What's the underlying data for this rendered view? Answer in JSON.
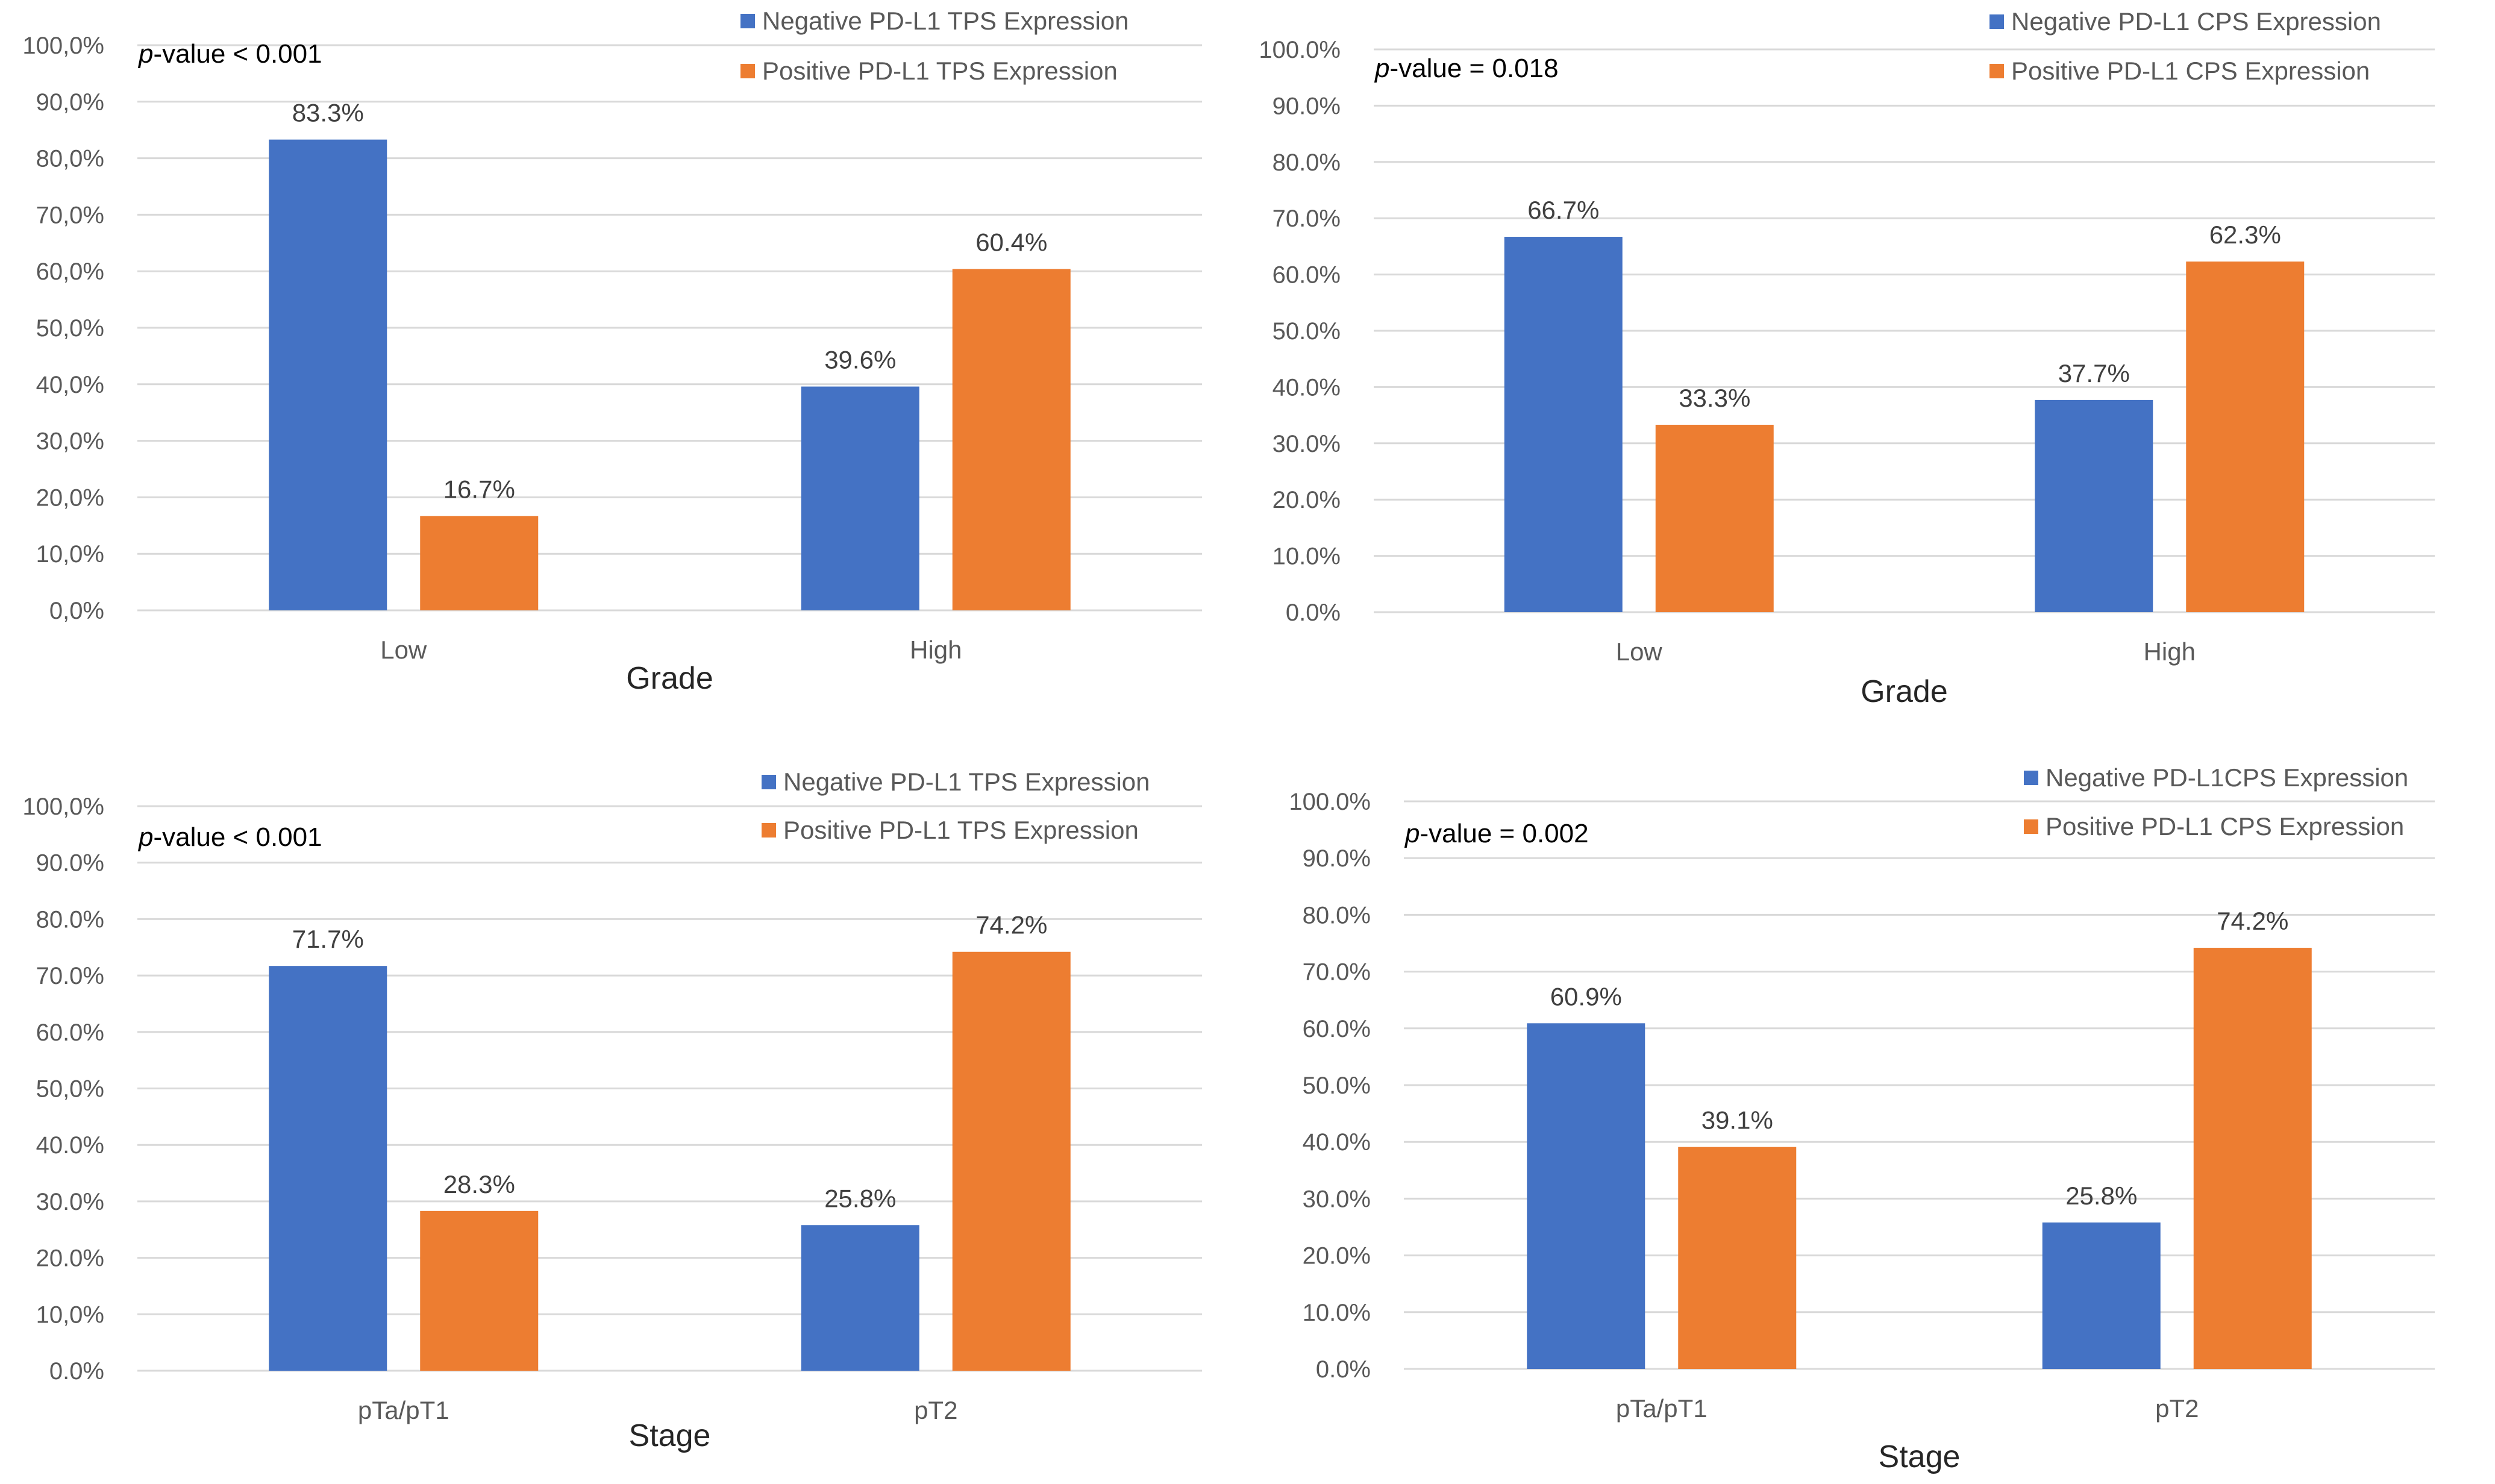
{
  "chart_data": [
    {
      "type": "bar",
      "name": "grade-tps",
      "title": "",
      "xlabel": "Grade",
      "ylabel": "",
      "ylim": [
        0,
        100
      ],
      "ytick_labels": [
        "0,0%",
        "10,0%",
        "20,0%",
        "30,0%",
        "40,0%",
        "50,0%",
        "60,0%",
        "70,0%",
        "80,0%",
        "90,0%",
        "100,0%"
      ],
      "categories": [
        "Low",
        "High"
      ],
      "series": [
        {
          "name": "Negative PD-L1 TPS Expression",
          "color": "#4472c4",
          "values": [
            83.3,
            39.6
          ],
          "labels": [
            "83.3%",
            "39.6%"
          ]
        },
        {
          "name": "Positive PD-L1 TPS Expression",
          "color": "#ed7d31",
          "values": [
            16.7,
            60.4
          ],
          "labels": [
            "16.7%",
            "60.4%"
          ]
        }
      ],
      "annotation": {
        "p_prefix": "p",
        "p_suffix": "-value",
        "p_value": "< 0.001"
      },
      "legend": "top-right",
      "grid": true
    },
    {
      "type": "bar",
      "name": "grade-cps",
      "title": "",
      "xlabel": "Grade",
      "ylabel": "",
      "ylim": [
        0,
        100
      ],
      "ytick_labels": [
        "0.0%",
        "10.0%",
        "20.0%",
        "30.0%",
        "40.0%",
        "50.0%",
        "60.0%",
        "70.0%",
        "80.0%",
        "90.0%",
        "100.0%"
      ],
      "categories": [
        "Low",
        "High"
      ],
      "series": [
        {
          "name": "Negative PD-L1 CPS Expression",
          "color": "#4472c4",
          "values": [
            66.7,
            37.7
          ],
          "labels": [
            "66.7%",
            "37.7%"
          ]
        },
        {
          "name": "Positive PD-L1 CPS Expression",
          "color": "#ed7d31",
          "values": [
            33.3,
            62.3
          ],
          "labels": [
            "33.3%",
            "62.3%"
          ]
        }
      ],
      "annotation": {
        "p_prefix": "p",
        "p_suffix": "-value",
        "p_value": "= 0.018"
      },
      "legend": "top-right",
      "grid": true
    },
    {
      "type": "bar",
      "name": "stage-tps",
      "title": "",
      "xlabel": "Stage",
      "ylabel": "",
      "ylim": [
        0,
        100
      ],
      "ytick_labels": [
        "0.0%",
        "10,0%",
        "20.0%",
        "30.0%",
        "40.0%",
        "50,0%",
        "60.0%",
        "70.0%",
        "80.0%",
        "90.0%",
        "100,0%"
      ],
      "categories": [
        "pTa/pT1",
        "pT2"
      ],
      "series": [
        {
          "name": "Negative PD-L1 TPS Expression",
          "color": "#4472c4",
          "values": [
            71.7,
            25.8
          ],
          "labels": [
            "71.7%",
            "25.8%"
          ]
        },
        {
          "name": "Positive PD-L1 TPS Expression",
          "color": "#ed7d31",
          "values": [
            28.3,
            74.2
          ],
          "labels": [
            "28.3%",
            "74.2%"
          ]
        }
      ],
      "annotation": {
        "p_prefix": "p",
        "p_suffix": "-value",
        "p_value": "< 0.001"
      },
      "legend": "top-right",
      "grid": true
    },
    {
      "type": "bar",
      "name": "stage-cps",
      "title": "",
      "xlabel": "Stage",
      "ylabel": "",
      "ylim": [
        0,
        100
      ],
      "ytick_labels": [
        "0.0%",
        "10.0%",
        "20.0%",
        "30.0%",
        "40.0%",
        "50.0%",
        "60.0%",
        "70.0%",
        "80.0%",
        "90.0%",
        "100.0%"
      ],
      "categories": [
        "pTa/pT1",
        "pT2"
      ],
      "series": [
        {
          "name": "Negative PD-L1CPS Expression",
          "color": "#4472c4",
          "values": [
            60.9,
            25.8
          ],
          "labels": [
            "60.9%",
            "25.8%"
          ]
        },
        {
          "name": "Positive PD-L1 CPS Expression",
          "color": "#ed7d31",
          "values": [
            39.1,
            74.2
          ],
          "labels": [
            "39.1%",
            "74.2%"
          ]
        }
      ],
      "annotation": {
        "p_prefix": "p",
        "p_suffix": "-value",
        "p_value": "= 0.002"
      },
      "legend": "top-right",
      "grid": true
    }
  ]
}
